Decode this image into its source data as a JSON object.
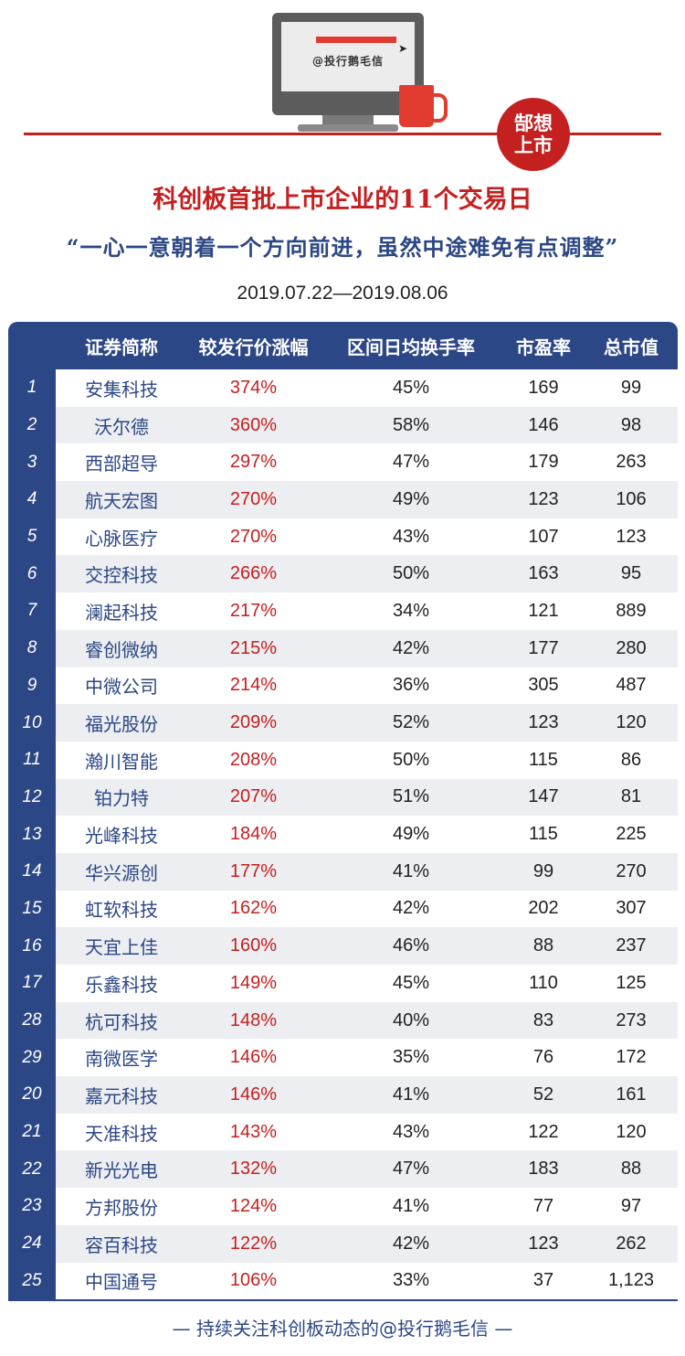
{
  "header": {
    "screen_text": "@投行鹅毛信",
    "badge_line1": "郜想",
    "badge_line2": "上市",
    "title": "科创板首批上市企业的11个交易日",
    "subtitle": "“一心一意朝着一个方向前进，虽然中途难免有点调整”",
    "date_range": "2019.07.22—2019.08.06"
  },
  "table": {
    "columns": [
      "证券简称",
      "较发行价涨幅",
      "区间日均换手率",
      "市盈率",
      "总市值"
    ],
    "rows": [
      {
        "n": "1",
        "name": "安集科技",
        "gain": "374%",
        "turnover": "45%",
        "pe": "169",
        "cap": "99"
      },
      {
        "n": "2",
        "name": "沃尔德",
        "gain": "360%",
        "turnover": "58%",
        "pe": "146",
        "cap": "98"
      },
      {
        "n": "3",
        "name": "西部超导",
        "gain": "297%",
        "turnover": "47%",
        "pe": "179",
        "cap": "263"
      },
      {
        "n": "4",
        "name": "航天宏图",
        "gain": "270%",
        "turnover": "49%",
        "pe": "123",
        "cap": "106"
      },
      {
        "n": "5",
        "name": "心脉医疗",
        "gain": "270%",
        "turnover": "43%",
        "pe": "107",
        "cap": "123"
      },
      {
        "n": "6",
        "name": "交控科技",
        "gain": "266%",
        "turnover": "50%",
        "pe": "163",
        "cap": "95"
      },
      {
        "n": "7",
        "name": "澜起科技",
        "gain": "217%",
        "turnover": "34%",
        "pe": "121",
        "cap": "889"
      },
      {
        "n": "8",
        "name": "睿创微纳",
        "gain": "215%",
        "turnover": "42%",
        "pe": "177",
        "cap": "280"
      },
      {
        "n": "9",
        "name": "中微公司",
        "gain": "214%",
        "turnover": "36%",
        "pe": "305",
        "cap": "487"
      },
      {
        "n": "10",
        "name": "福光股份",
        "gain": "209%",
        "turnover": "52%",
        "pe": "123",
        "cap": "120"
      },
      {
        "n": "11",
        "name": "瀚川智能",
        "gain": "208%",
        "turnover": "50%",
        "pe": "115",
        "cap": "86"
      },
      {
        "n": "12",
        "name": "铂力特",
        "gain": "207%",
        "turnover": "51%",
        "pe": "147",
        "cap": "81"
      },
      {
        "n": "13",
        "name": "光峰科技",
        "gain": "184%",
        "turnover": "49%",
        "pe": "115",
        "cap": "225"
      },
      {
        "n": "14",
        "name": "华兴源创",
        "gain": "177%",
        "turnover": "41%",
        "pe": "99",
        "cap": "270"
      },
      {
        "n": "15",
        "name": "虹软科技",
        "gain": "162%",
        "turnover": "42%",
        "pe": "202",
        "cap": "307"
      },
      {
        "n": "16",
        "name": "天宜上佳",
        "gain": "160%",
        "turnover": "46%",
        "pe": "88",
        "cap": "237"
      },
      {
        "n": "17",
        "name": "乐鑫科技",
        "gain": "149%",
        "turnover": "45%",
        "pe": "110",
        "cap": "125"
      },
      {
        "n": "28",
        "name": "杭可科技",
        "gain": "148%",
        "turnover": "40%",
        "pe": "83",
        "cap": "273"
      },
      {
        "n": "29",
        "name": "南微医学",
        "gain": "146%",
        "turnover": "35%",
        "pe": "76",
        "cap": "172"
      },
      {
        "n": "20",
        "name": "嘉元科技",
        "gain": "146%",
        "turnover": "41%",
        "pe": "52",
        "cap": "161"
      },
      {
        "n": "21",
        "name": "天准科技",
        "gain": "143%",
        "turnover": "43%",
        "pe": "122",
        "cap": "120"
      },
      {
        "n": "22",
        "name": "新光光电",
        "gain": "132%",
        "turnover": "47%",
        "pe": "183",
        "cap": "88"
      },
      {
        "n": "23",
        "name": "方邦股份",
        "gain": "124%",
        "turnover": "41%",
        "pe": "77",
        "cap": "97"
      },
      {
        "n": "24",
        "name": "容百科技",
        "gain": "122%",
        "turnover": "42%",
        "pe": "123",
        "cap": "262"
      },
      {
        "n": "25",
        "name": "中国通号",
        "gain": "106%",
        "turnover": "33%",
        "pe": "37",
        "cap": "1,123"
      }
    ]
  },
  "footer": {
    "text": "— 持续关注科创板动态的@投行鹅毛信 —"
  },
  "colors": {
    "accent_red": "#c42020",
    "navy": "#2c4785"
  }
}
